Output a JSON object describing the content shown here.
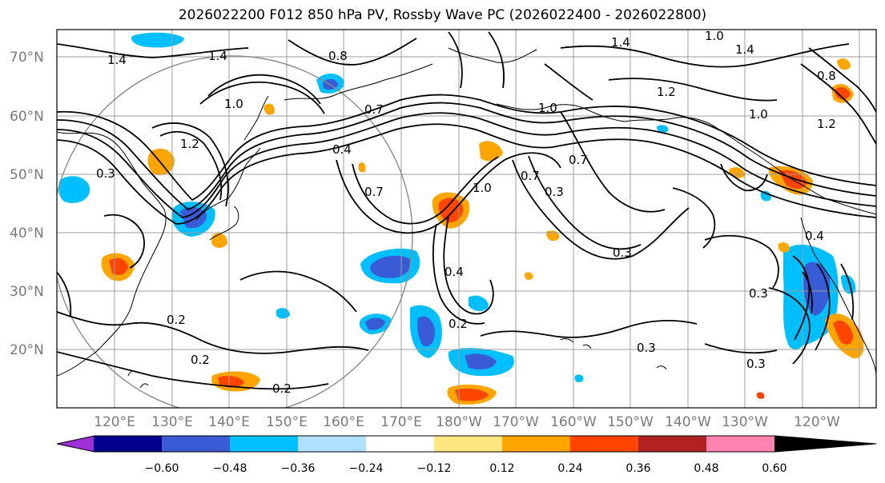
{
  "title": "2026022200 F012 850 hPa PV, Rossby Wave PC (2026022400 - 2026022800)",
  "map": {
    "lat_range": [
      10,
      75
    ],
    "lon_range_east": [
      110,
      253
    ],
    "lat_labels": [
      {
        "lat": 70,
        "text": "70°N"
      },
      {
        "lat": 60,
        "text": "60°N"
      },
      {
        "lat": 50,
        "text": "50°N"
      },
      {
        "lat": 40,
        "text": "40°N"
      },
      {
        "lat": 30,
        "text": "30°N"
      },
      {
        "lat": 20,
        "text": "20°N"
      }
    ],
    "lon_labels": [
      {
        "lon": 120,
        "text": "120°E"
      },
      {
        "lon": 130,
        "text": "130°E"
      },
      {
        "lon": 140,
        "text": "140°E"
      },
      {
        "lon": 150,
        "text": "150°E"
      },
      {
        "lon": 160,
        "text": "160°E"
      },
      {
        "lon": 170,
        "text": "170°E"
      },
      {
        "lon": 180,
        "text": "180°W"
      },
      {
        "lon": 190,
        "text": "170°W"
      },
      {
        "lon": 200,
        "text": "160°W"
      },
      {
        "lon": 210,
        "text": "150°W"
      },
      {
        "lon": 220,
        "text": "140°W"
      },
      {
        "lon": 230,
        "text": "130°W"
      },
      {
        "lon": 240,
        "text": "120°W"
      }
    ],
    "contour_labels": [
      "0.2",
      "0.3",
      "0.4",
      "0.7",
      "1.0",
      "1.2",
      "1.4",
      "0.8"
    ]
  },
  "colorbar": {
    "tick_labels": [
      "−0.60",
      "−0.48",
      "−0.36",
      "−0.24",
      "−0.12",
      "0.12",
      "0.24",
      "0.36",
      "0.48",
      "0.60"
    ],
    "colors": [
      "#9b30d9",
      "#00008b",
      "#3a5bd6",
      "#00bfff",
      "#b0e0ff",
      "#ffffff",
      "#ffe680",
      "#ffa500",
      "#ff4500",
      "#b22222",
      "#ff85b0"
    ]
  }
}
